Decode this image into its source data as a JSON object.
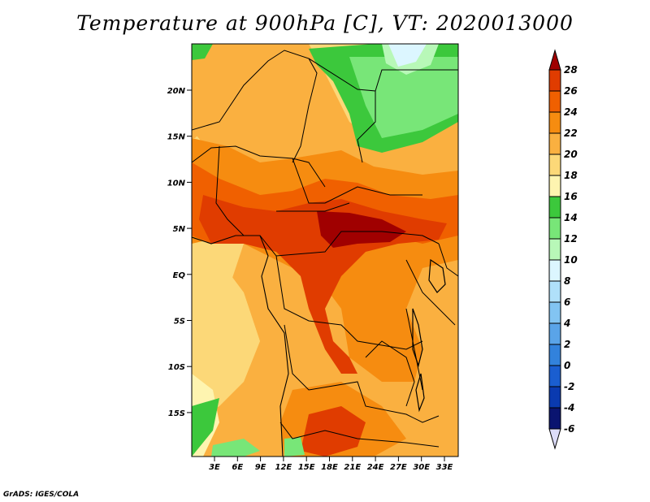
{
  "title": "Temperature at 900hPa [C], VT: 2020013000",
  "credit": "GrADS: IGES/COLA",
  "lat_labels": [
    "20N",
    "15N",
    "10N",
    "5N",
    "EQ",
    "5S",
    "10S",
    "15S"
  ],
  "lon_labels": [
    "3E",
    "6E",
    "9E",
    "12E",
    "15E",
    "18E",
    "21E",
    "24E",
    "27E",
    "30E",
    "33E"
  ],
  "colorbar": {
    "levels": [
      "28",
      "26",
      "24",
      "22",
      "20",
      "18",
      "16",
      "14",
      "12",
      "10",
      "8",
      "6",
      "4",
      "2",
      "0",
      "-2",
      "-4",
      "-6"
    ],
    "colors": [
      "#a00000",
      "#e03c00",
      "#f06000",
      "#f68c10",
      "#fab040",
      "#fcd878",
      "#fef4b0",
      "#3cc83c",
      "#78e678",
      "#b8f8b8",
      "#dcf6ff",
      "#b0e0fa",
      "#82c4f2",
      "#5aa4e8",
      "#3282dc",
      "#1a5ed0",
      "#0a3ab0",
      "#0a1470",
      "#dcdcf8"
    ]
  }
}
